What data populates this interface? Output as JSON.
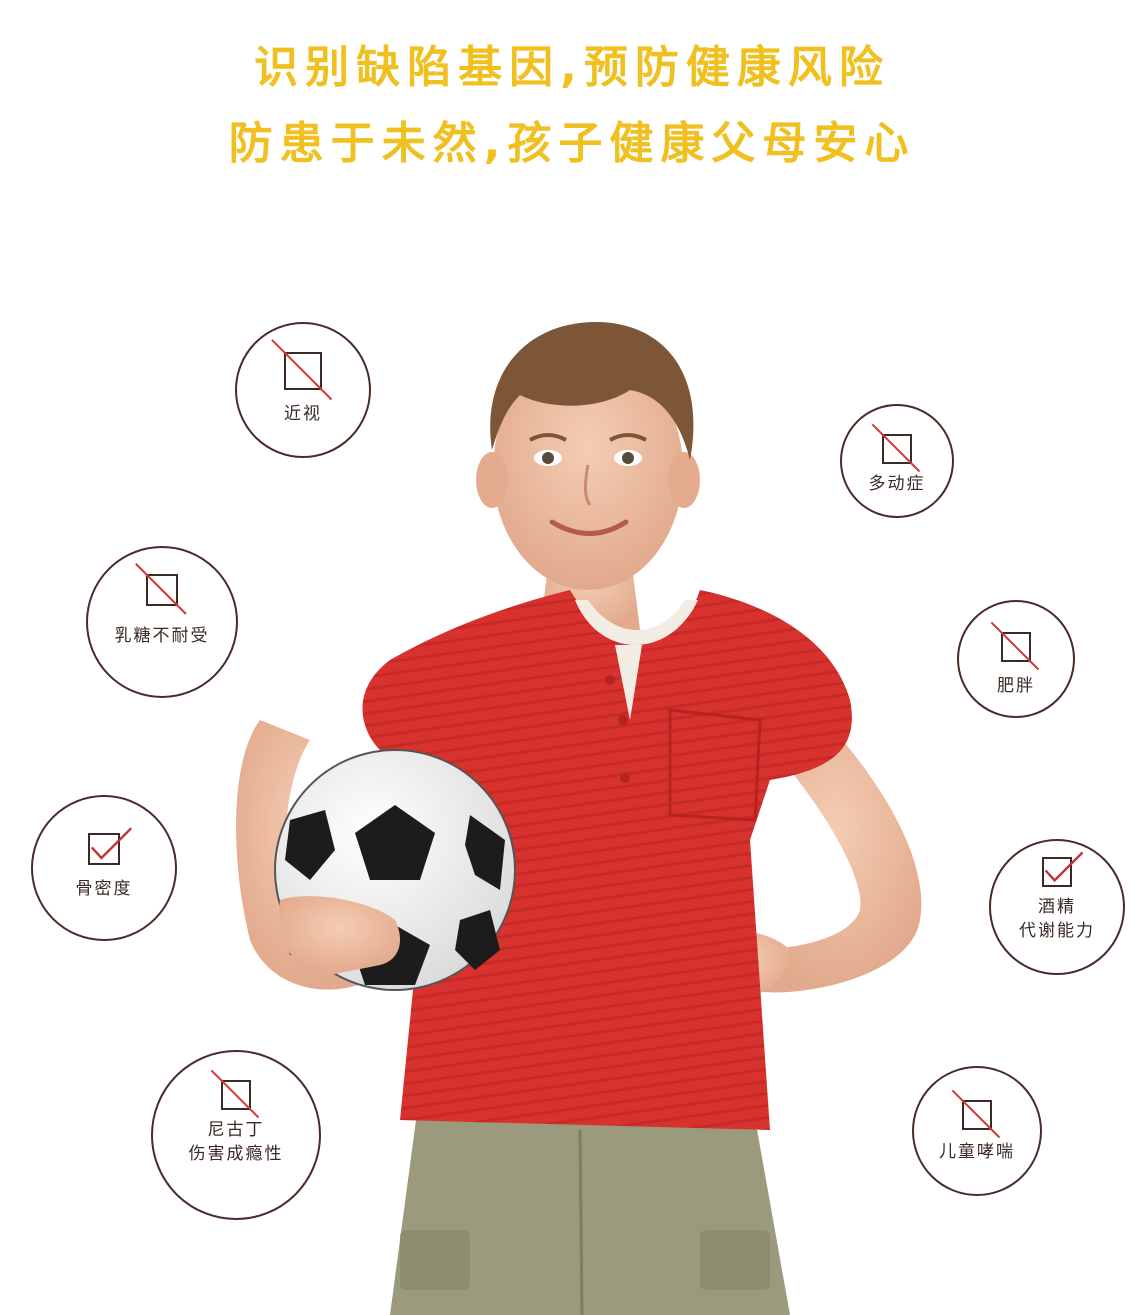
{
  "headline": {
    "line1": "识别缺陷基因,预防健康风险",
    "line2": "防患于未然,孩子健康父母安心"
  },
  "colors": {
    "accent": "#f0c020",
    "ring": "#4a2c26",
    "mark_no": "#d0383a",
    "mark_yes": "#c23334",
    "shirt": "#d8322e",
    "shorts": "#9c9a7c"
  },
  "badges": [
    {
      "id": "myopia",
      "lines": [
        "近视"
      ],
      "mark": "slash",
      "icon": "slash-checkbox-icon"
    },
    {
      "id": "adhd",
      "lines": [
        "多动症"
      ],
      "mark": "slash",
      "icon": "slash-checkbox-icon"
    },
    {
      "id": "lactose",
      "lines": [
        "乳糖不耐受"
      ],
      "mark": "slash",
      "icon": "slash-checkbox-icon"
    },
    {
      "id": "obesity",
      "lines": [
        "肥胖"
      ],
      "mark": "slash",
      "icon": "slash-checkbox-icon"
    },
    {
      "id": "bone",
      "lines": [
        "骨密度"
      ],
      "mark": "check",
      "icon": "checkmark-checkbox-icon"
    },
    {
      "id": "alcohol",
      "lines": [
        "酒精",
        "代谢能力"
      ],
      "mark": "check",
      "icon": "checkmark-checkbox-icon"
    },
    {
      "id": "nicotine",
      "lines": [
        "尼古丁",
        "伤害成瘾性"
      ],
      "mark": "slash",
      "icon": "slash-checkbox-icon"
    },
    {
      "id": "asthma",
      "lines": [
        "儿童哮喘"
      ],
      "mark": "slash",
      "icon": "slash-checkbox-icon"
    }
  ]
}
